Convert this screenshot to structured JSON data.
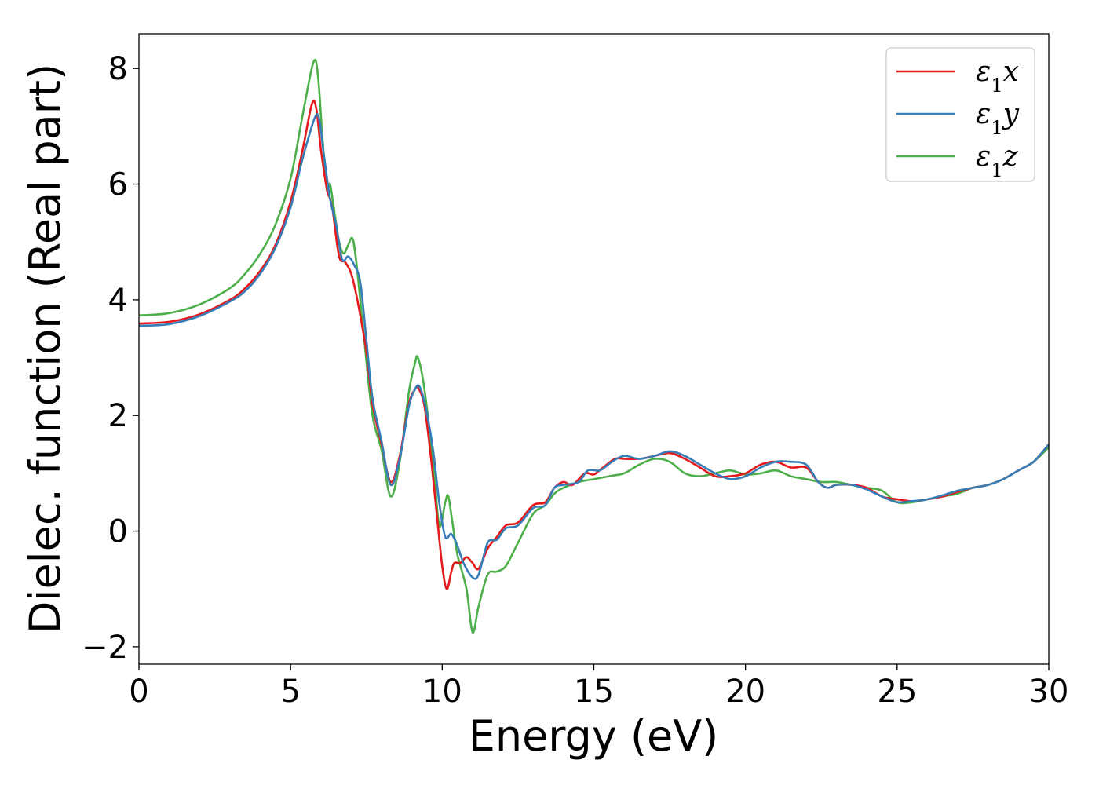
{
  "chart_data": {
    "type": "line",
    "title": "",
    "xlabel": "Energy (eV)",
    "ylabel": "Dielec. function (Real part)",
    "xlim": [
      0,
      30
    ],
    "ylim": [
      -2.3,
      8.6
    ],
    "xticks": [
      0,
      5,
      10,
      15,
      20,
      25,
      30
    ],
    "xtick_labels": [
      "0",
      "5",
      "10",
      "15",
      "20",
      "25",
      "30"
    ],
    "yticks": [
      -2,
      0,
      2,
      4,
      6,
      8
    ],
    "ytick_labels": [
      "−2",
      "0",
      "2",
      "4",
      "6",
      "8"
    ],
    "grid": false,
    "legend_position": "top-right",
    "series": [
      {
        "name": "ε1x",
        "legend_main": "ε",
        "legend_sub": "1",
        "legend_var": "x",
        "color": "#e41a1c",
        "points": [
          [
            0,
            3.59
          ],
          [
            1,
            3.62
          ],
          [
            2,
            3.75
          ],
          [
            3,
            4.0
          ],
          [
            3.5,
            4.2
          ],
          [
            4,
            4.5
          ],
          [
            4.5,
            4.95
          ],
          [
            5,
            5.7
          ],
          [
            5.4,
            6.6
          ],
          [
            5.7,
            7.38
          ],
          [
            5.85,
            7.3
          ],
          [
            6.0,
            6.6
          ],
          [
            6.2,
            5.9
          ],
          [
            6.3,
            5.75
          ],
          [
            6.4,
            5.5
          ],
          [
            6.6,
            4.75
          ],
          [
            6.8,
            4.65
          ],
          [
            7.0,
            4.45
          ],
          [
            7.2,
            4.0
          ],
          [
            7.5,
            3.1
          ],
          [
            7.7,
            2.2
          ],
          [
            8.0,
            1.5
          ],
          [
            8.3,
            0.85
          ],
          [
            8.6,
            1.3
          ],
          [
            8.9,
            2.2
          ],
          [
            9.1,
            2.45
          ],
          [
            9.2,
            2.48
          ],
          [
            9.4,
            2.2
          ],
          [
            9.6,
            1.4
          ],
          [
            9.8,
            0.4
          ],
          [
            10.0,
            -0.6
          ],
          [
            10.15,
            -1.0
          ],
          [
            10.3,
            -0.7
          ],
          [
            10.4,
            -0.55
          ],
          [
            10.6,
            -0.55
          ],
          [
            10.8,
            -0.45
          ],
          [
            11.0,
            -0.55
          ],
          [
            11.2,
            -0.65
          ],
          [
            11.5,
            -0.3
          ],
          [
            11.8,
            -0.1
          ],
          [
            12.1,
            0.1
          ],
          [
            12.5,
            0.15
          ],
          [
            13,
            0.45
          ],
          [
            13.4,
            0.5
          ],
          [
            13.7,
            0.75
          ],
          [
            14,
            0.85
          ],
          [
            14.3,
            0.8
          ],
          [
            14.7,
            1.0
          ],
          [
            15,
            0.98
          ],
          [
            15.3,
            1.1
          ],
          [
            15.7,
            1.25
          ],
          [
            16,
            1.25
          ],
          [
            16.5,
            1.25
          ],
          [
            17,
            1.3
          ],
          [
            17.5,
            1.35
          ],
          [
            18,
            1.25
          ],
          [
            18.5,
            1.1
          ],
          [
            19,
            0.95
          ],
          [
            19.5,
            0.95
          ],
          [
            20,
            1.0
          ],
          [
            20.5,
            1.15
          ],
          [
            21,
            1.2
          ],
          [
            21.5,
            1.1
          ],
          [
            22,
            1.1
          ],
          [
            22.4,
            0.85
          ],
          [
            22.7,
            0.75
          ],
          [
            23,
            0.8
          ],
          [
            23.5,
            0.8
          ],
          [
            24,
            0.75
          ],
          [
            24.5,
            0.6
          ],
          [
            25,
            0.55
          ],
          [
            25.5,
            0.52
          ],
          [
            26,
            0.55
          ],
          [
            26.5,
            0.6
          ],
          [
            27,
            0.68
          ],
          [
            27.5,
            0.75
          ],
          [
            28,
            0.8
          ],
          [
            28.5,
            0.9
          ],
          [
            29,
            1.05
          ],
          [
            29.5,
            1.2
          ],
          [
            30,
            1.5
          ]
        ]
      },
      {
        "name": "ε1y",
        "legend_main": "ε",
        "legend_sub": "1",
        "legend_var": "y",
        "color": "#377eb8",
        "points": [
          [
            0,
            3.55
          ],
          [
            1,
            3.58
          ],
          [
            2,
            3.72
          ],
          [
            3,
            3.97
          ],
          [
            3.5,
            4.15
          ],
          [
            4,
            4.45
          ],
          [
            4.5,
            4.9
          ],
          [
            5,
            5.6
          ],
          [
            5.4,
            6.45
          ],
          [
            5.8,
            7.15
          ],
          [
            5.95,
            7.1
          ],
          [
            6.1,
            6.5
          ],
          [
            6.3,
            5.75
          ],
          [
            6.5,
            5.3
          ],
          [
            6.7,
            4.7
          ],
          [
            6.9,
            4.75
          ],
          [
            7.1,
            4.6
          ],
          [
            7.3,
            4.3
          ],
          [
            7.5,
            3.3
          ],
          [
            7.7,
            2.3
          ],
          [
            8.0,
            1.55
          ],
          [
            8.3,
            0.8
          ],
          [
            8.6,
            1.25
          ],
          [
            8.9,
            2.15
          ],
          [
            9.1,
            2.45
          ],
          [
            9.25,
            2.5
          ],
          [
            9.45,
            2.15
          ],
          [
            9.7,
            1.4
          ],
          [
            9.9,
            0.5
          ],
          [
            10.1,
            -0.1
          ],
          [
            10.3,
            -0.05
          ],
          [
            10.5,
            -0.25
          ],
          [
            10.7,
            -0.55
          ],
          [
            11.0,
            -0.8
          ],
          [
            11.2,
            -0.75
          ],
          [
            11.5,
            -0.2
          ],
          [
            11.8,
            -0.15
          ],
          [
            12.1,
            0.05
          ],
          [
            12.5,
            0.1
          ],
          [
            13,
            0.4
          ],
          [
            13.4,
            0.45
          ],
          [
            13.7,
            0.75
          ],
          [
            14,
            0.8
          ],
          [
            14.5,
            0.85
          ],
          [
            14.8,
            1.05
          ],
          [
            15.2,
            1.05
          ],
          [
            15.6,
            1.2
          ],
          [
            16,
            1.3
          ],
          [
            16.5,
            1.25
          ],
          [
            17,
            1.3
          ],
          [
            17.5,
            1.38
          ],
          [
            18,
            1.3
          ],
          [
            18.5,
            1.15
          ],
          [
            19,
            1.0
          ],
          [
            19.5,
            0.9
          ],
          [
            20,
            0.95
          ],
          [
            20.5,
            1.1
          ],
          [
            21,
            1.2
          ],
          [
            21.5,
            1.2
          ],
          [
            22,
            1.15
          ],
          [
            22.4,
            0.85
          ],
          [
            22.7,
            0.75
          ],
          [
            23,
            0.8
          ],
          [
            23.5,
            0.8
          ],
          [
            24,
            0.72
          ],
          [
            24.5,
            0.6
          ],
          [
            25,
            0.5
          ],
          [
            25.5,
            0.52
          ],
          [
            26,
            0.55
          ],
          [
            26.5,
            0.62
          ],
          [
            27,
            0.7
          ],
          [
            27.5,
            0.75
          ],
          [
            28,
            0.8
          ],
          [
            28.5,
            0.9
          ],
          [
            29,
            1.05
          ],
          [
            29.5,
            1.2
          ],
          [
            30,
            1.5
          ]
        ]
      },
      {
        "name": "ε1z",
        "legend_main": "ε",
        "legend_sub": "1",
        "legend_var": "z",
        "color": "#4daf4a",
        "points": [
          [
            0,
            3.73
          ],
          [
            1,
            3.77
          ],
          [
            2,
            3.92
          ],
          [
            3,
            4.2
          ],
          [
            3.5,
            4.45
          ],
          [
            4,
            4.8
          ],
          [
            4.5,
            5.3
          ],
          [
            5,
            6.1
          ],
          [
            5.4,
            7.2
          ],
          [
            5.75,
            8.1
          ],
          [
            5.9,
            7.9
          ],
          [
            6.05,
            6.8
          ],
          [
            6.2,
            5.9
          ],
          [
            6.3,
            6.0
          ],
          [
            6.45,
            5.5
          ],
          [
            6.6,
            5.0
          ],
          [
            6.75,
            4.8
          ],
          [
            6.9,
            4.95
          ],
          [
            7.05,
            5.05
          ],
          [
            7.2,
            4.5
          ],
          [
            7.45,
            3.2
          ],
          [
            7.7,
            2.0
          ],
          [
            8.0,
            1.4
          ],
          [
            8.3,
            0.6
          ],
          [
            8.6,
            1.2
          ],
          [
            8.9,
            2.4
          ],
          [
            9.1,
            2.9
          ],
          [
            9.2,
            3.0
          ],
          [
            9.4,
            2.5
          ],
          [
            9.7,
            1.2
          ],
          [
            9.9,
            0.1
          ],
          [
            10.1,
            0.5
          ],
          [
            10.2,
            0.6
          ],
          [
            10.35,
            0.1
          ],
          [
            10.5,
            -0.4
          ],
          [
            10.8,
            -1.0
          ],
          [
            11.0,
            -1.75
          ],
          [
            11.2,
            -1.3
          ],
          [
            11.5,
            -0.75
          ],
          [
            11.8,
            -0.7
          ],
          [
            12.1,
            -0.6
          ],
          [
            12.5,
            -0.2
          ],
          [
            13,
            0.3
          ],
          [
            13.4,
            0.45
          ],
          [
            13.7,
            0.65
          ],
          [
            14,
            0.75
          ],
          [
            14.5,
            0.85
          ],
          [
            15,
            0.9
          ],
          [
            15.5,
            0.95
          ],
          [
            16,
            1.0
          ],
          [
            16.5,
            1.15
          ],
          [
            17,
            1.25
          ],
          [
            17.5,
            1.2
          ],
          [
            18,
            1.0
          ],
          [
            18.5,
            0.95
          ],
          [
            19,
            1.0
          ],
          [
            19.5,
            1.05
          ],
          [
            20,
            0.98
          ],
          [
            20.5,
            1.0
          ],
          [
            21,
            1.05
          ],
          [
            21.5,
            0.95
          ],
          [
            22,
            0.9
          ],
          [
            22.5,
            0.85
          ],
          [
            23,
            0.85
          ],
          [
            23.5,
            0.8
          ],
          [
            24,
            0.75
          ],
          [
            24.5,
            0.7
          ],
          [
            25,
            0.5
          ],
          [
            25.5,
            0.5
          ],
          [
            26,
            0.55
          ],
          [
            26.5,
            0.6
          ],
          [
            27,
            0.65
          ],
          [
            27.5,
            0.75
          ],
          [
            28,
            0.8
          ],
          [
            28.5,
            0.9
          ],
          [
            29,
            1.05
          ],
          [
            29.5,
            1.2
          ],
          [
            30,
            1.45
          ]
        ]
      }
    ]
  }
}
